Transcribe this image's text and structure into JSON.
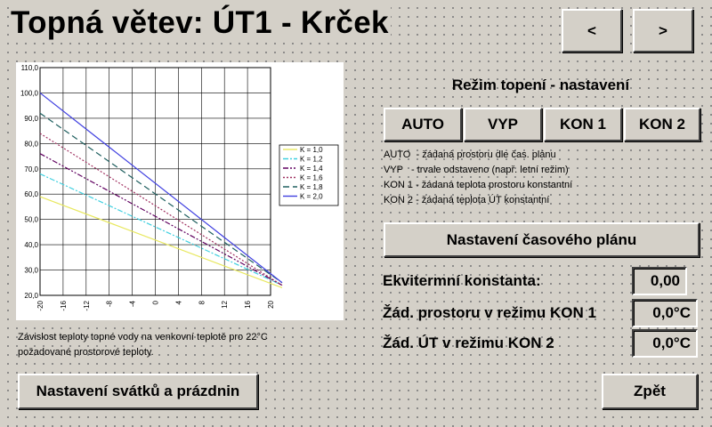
{
  "header": {
    "title": "Topná větev: ÚT1 - Krček",
    "prev_label": "<",
    "next_label": ">"
  },
  "mode_section": {
    "heading": "Režim topení - nastavení",
    "buttons": [
      "AUTO",
      "VYP",
      "KON 1",
      "KON 2"
    ],
    "descriptions": [
      "AUTO  - žádaná prostoru dle čas. plánu",
      "VYP   - trvale odstaveno (např. letní režim)",
      "KON 1 - žádaná teplota prostoru konstantní",
      "KON 2 - žádaná teplota ÚT konstantní"
    ],
    "schedule_button": "Nastavení časového plánu"
  },
  "params": [
    {
      "label": "Ekvitermní konstanta:",
      "value": "0,00"
    },
    {
      "label": "Žád. prostoru v režimu KON 1",
      "value": "0,0°C"
    },
    {
      "label": "Žád. ÚT v režimu KON 2",
      "value": "0,0°C"
    }
  ],
  "caption": {
    "line1": "Závislost teploty topné vody na venkovní teplotě pro 22°C",
    "line2": "požadované prostorové teploty."
  },
  "footer": {
    "holidays_button": "Nastavení svátků a prázdnin",
    "back_button": "Zpět"
  },
  "chart_data": {
    "type": "line",
    "xlim": [
      -20,
      20
    ],
    "ylim": [
      20,
      110
    ],
    "x_ticks": [
      "-20",
      "-16",
      "-12",
      "-8",
      "-4",
      "0",
      "4",
      "8",
      "12",
      "16",
      "20"
    ],
    "y_ticks": [
      "20,0",
      "30,0",
      "40,0",
      "50,0",
      "60,0",
      "70,0",
      "80,0",
      "90,0",
      "100,0",
      "110,0"
    ],
    "grid": true,
    "legend_position": "right",
    "series": [
      {
        "name": "K = 1,0",
        "color": "#e8e860",
        "dash": "",
        "x": [
          -20,
          22
        ],
        "y": [
          59,
          23
        ]
      },
      {
        "name": "K = 1,2",
        "color": "#40d0e0",
        "dash": "6,2,2,2",
        "x": [
          -20,
          22
        ],
        "y": [
          68,
          24
        ]
      },
      {
        "name": "K = 1,4",
        "color": "#600060",
        "dash": "6,2,2,2,2,2",
        "x": [
          -20,
          22
        ],
        "y": [
          76,
          24
        ]
      },
      {
        "name": "K = 1,6",
        "color": "#a03060",
        "dash": "2,2",
        "x": [
          -20,
          22
        ],
        "y": [
          84,
          24
        ]
      },
      {
        "name": "K = 1,8",
        "color": "#206060",
        "dash": "7,4",
        "x": [
          -20,
          22
        ],
        "y": [
          92,
          25
        ]
      },
      {
        "name": "K = 2,0",
        "color": "#4040e0",
        "dash": "",
        "x": [
          -20,
          22
        ],
        "y": [
          100,
          25
        ]
      }
    ]
  }
}
